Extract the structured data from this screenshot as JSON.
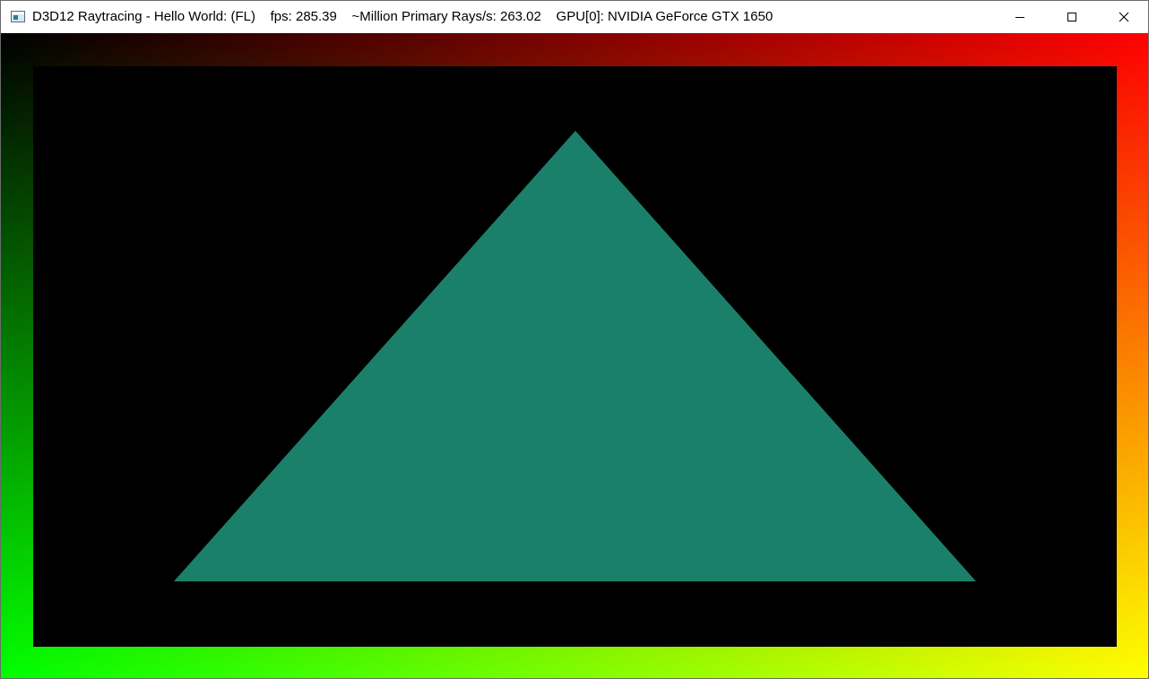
{
  "window": {
    "title": "D3D12 Raytracing - Hello World: (FL)    fps: 285.39    ~Million Primary Rays/s: 263.02    GPU[0]: NVIDIA GeForce GTX 1650",
    "icons": {
      "app": "application-window-icon",
      "minimize": "minimize-icon",
      "maximize": "maximize-icon",
      "close": "close-icon"
    }
  },
  "render": {
    "colors": {
      "triangle": "#1b806a",
      "background": "#000000",
      "border_top_left": "#000000",
      "border_top_right": "#ff0000",
      "border_bottom_left": "#00ff00",
      "border_bottom_right": "#ffff00"
    }
  }
}
